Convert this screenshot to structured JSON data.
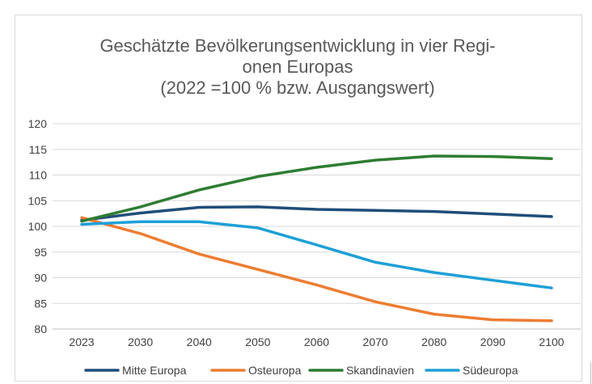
{
  "chart_data": {
    "type": "line",
    "title": "Geschätzte Bevölkerungsentwicklung in vier Regi-\nonen Europas\n(2022 =100 % bzw. Ausgangswert)",
    "xlabel": "",
    "ylabel": "",
    "categories": [
      "2023",
      "2030",
      "2040",
      "2050",
      "2060",
      "2070",
      "2080",
      "2090",
      "2100"
    ],
    "ylim": [
      80,
      120
    ],
    "yticks": [
      "80",
      "85",
      "90",
      "95",
      "100",
      "105",
      "110",
      "115",
      "120"
    ],
    "grid": true,
    "legend_position": "bottom",
    "series": [
      {
        "name": "Mitte Europa",
        "color": "#1f4e79",
        "values": [
          101.2,
          102.6,
          103.7,
          103.8,
          103.3,
          103.1,
          102.9,
          102.4,
          101.9
        ]
      },
      {
        "name": "Osteuropa",
        "color": "#ed7d31",
        "values": [
          101.7,
          98.6,
          94.6,
          91.6,
          88.6,
          85.3,
          82.9,
          81.8,
          81.6
        ]
      },
      {
        "name": "Skandinavien",
        "color": "#2e7d32",
        "values": [
          101.0,
          103.8,
          107.1,
          109.7,
          111.5,
          112.9,
          113.7,
          113.6,
          113.2
        ]
      },
      {
        "name": "Südeuropa",
        "color": "#1ea0d6",
        "values": [
          100.4,
          100.9,
          100.9,
          99.7,
          96.4,
          93.0,
          91.0,
          89.5,
          88.0
        ]
      }
    ]
  }
}
